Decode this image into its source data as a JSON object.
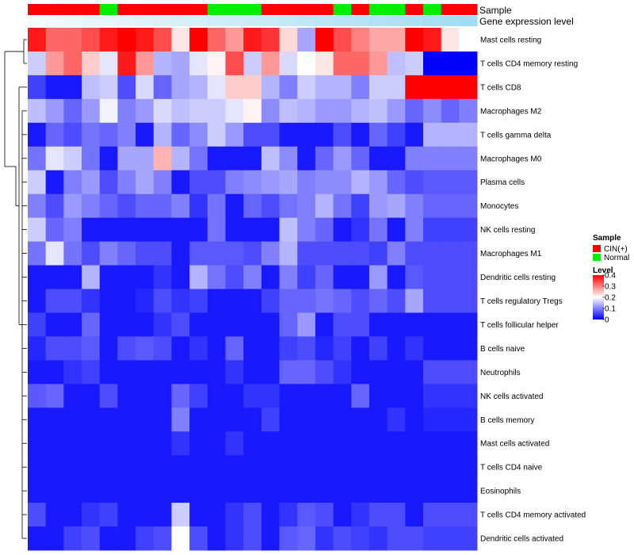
{
  "chart_data": {
    "type": "heatmap",
    "title": "",
    "annotation_tracks": [
      {
        "label": "Sample",
        "key": "sample"
      },
      {
        "label": "Gene expression level",
        "key": "expr"
      }
    ],
    "sample_groups": [
      "CIN(+)",
      "CIN(+)",
      "CIN(+)",
      "CIN(+)",
      "Normal",
      "CIN(+)",
      "CIN(+)",
      "CIN(+)",
      "CIN(+)",
      "CIN(+)",
      "Normal",
      "Normal",
      "Normal",
      "CIN(+)",
      "CIN(+)",
      "CIN(+)",
      "CIN(+)",
      "Normal",
      "CIN(+)",
      "Normal",
      "Normal",
      "CIN(+)",
      "Normal",
      "CIN(+)",
      "CIN(+)"
    ],
    "expression_annotation": [
      0.08,
      0.1,
      0.12,
      0.14,
      0.16,
      0.18,
      0.2,
      0.22,
      0.24,
      0.26,
      0.28,
      0.3,
      0.32,
      0.34,
      0.36,
      0.38,
      0.4,
      0.42,
      0.44,
      0.46,
      0.48,
      0.5,
      0.52,
      0.54,
      0.56
    ],
    "colors": {
      "cin": "#ff0000",
      "normal": "#00ee00",
      "low": "#0000ff",
      "mid": "#ffffff",
      "high": "#ff0000",
      "expr_low": "#ffffff",
      "expr_high": "#56c1ea",
      "dendrogram": "#000000"
    },
    "row_labels": [
      "Mast cells resting",
      "T cells CD4 memory resting",
      "T cells CD8",
      "Macrophages M2",
      "T cells gamma delta",
      "Macrophages M0",
      "Plasma cells",
      "Monocytes",
      "NK cells resting",
      "Macrophages M1",
      "Dendritic cells resting",
      "T cells regulatory  Tregs",
      "T cells follicular helper",
      "B cells naive",
      "Neutrophils",
      "NK cells activated",
      "B cells memory",
      "Mast cells activated",
      "T cells CD4 naive",
      "Eosinophils",
      "T cells CD4 memory activated",
      "Dendritic cells activated"
    ],
    "values": [
      [
        0.38,
        0.32,
        0.32,
        0.34,
        0.38,
        0.4,
        0.38,
        0.34,
        0.22,
        0.4,
        0.32,
        0.28,
        0.38,
        0.36,
        0.23,
        0.13,
        0.4,
        0.34,
        0.3,
        0.27,
        0.27,
        0.4,
        0.38,
        0.22,
        0.2
      ],
      [
        0.16,
        0.28,
        0.32,
        0.24,
        0.18,
        0.38,
        0.28,
        0.14,
        0.13,
        0.18,
        0.21,
        0.34,
        0.16,
        0.28,
        0.17,
        0.2,
        0.22,
        0.32,
        0.32,
        0.28,
        0.15,
        0.16,
        0.0,
        0.0,
        0.0
      ],
      [
        0.05,
        0.02,
        0.02,
        0.15,
        0.16,
        0.06,
        0.17,
        0.08,
        0.13,
        0.14,
        0.18,
        0.24,
        0.24,
        0.14,
        0.1,
        0.16,
        0.14,
        0.14,
        0.1,
        0.16,
        0.16,
        0.4,
        0.4,
        0.4,
        0.4
      ],
      [
        0.15,
        0.12,
        0.08,
        0.12,
        0.19,
        0.1,
        0.12,
        0.17,
        0.15,
        0.16,
        0.16,
        0.18,
        0.21,
        0.11,
        0.15,
        0.14,
        0.12,
        0.12,
        0.14,
        0.15,
        0.12,
        0.08,
        0.11,
        0.08,
        0.1
      ],
      [
        0.02,
        0.08,
        0.06,
        0.09,
        0.08,
        0.1,
        0.02,
        0.14,
        0.08,
        0.11,
        0.16,
        0.12,
        0.06,
        0.06,
        0.02,
        0.02,
        0.02,
        0.06,
        0.02,
        0.08,
        0.05,
        0.02,
        0.14,
        0.14,
        0.14
      ],
      [
        0.09,
        0.18,
        0.16,
        0.09,
        0.02,
        0.13,
        0.13,
        0.26,
        0.14,
        0.09,
        0.02,
        0.02,
        0.02,
        0.15,
        0.11,
        0.02,
        0.08,
        0.12,
        0.08,
        0.02,
        0.02,
        0.1,
        0.1,
        0.1,
        0.1
      ],
      [
        0.16,
        0.02,
        0.1,
        0.12,
        0.06,
        0.1,
        0.13,
        0.1,
        0.02,
        0.06,
        0.06,
        0.1,
        0.11,
        0.12,
        0.13,
        0.1,
        0.11,
        0.11,
        0.14,
        0.12,
        0.08,
        0.06,
        0.07,
        0.07,
        0.07
      ],
      [
        0.1,
        0.06,
        0.12,
        0.1,
        0.08,
        0.06,
        0.08,
        0.08,
        0.1,
        0.04,
        0.09,
        0.02,
        0.08,
        0.06,
        0.09,
        0.1,
        0.14,
        0.09,
        0.05,
        0.12,
        0.13,
        0.1,
        0.08,
        0.08,
        0.08
      ],
      [
        0.16,
        0.08,
        0.1,
        0.02,
        0.02,
        0.02,
        0.02,
        0.02,
        0.02,
        0.02,
        0.09,
        0.02,
        0.02,
        0.02,
        0.15,
        0.1,
        0.08,
        0.02,
        0.04,
        0.09,
        0.02,
        0.1,
        0.05,
        0.05,
        0.05
      ],
      [
        0.09,
        0.18,
        0.09,
        0.06,
        0.1,
        0.08,
        0.06,
        0.06,
        0.02,
        0.07,
        0.07,
        0.07,
        0.06,
        0.1,
        0.14,
        0.06,
        0.06,
        0.06,
        0.06,
        0.05,
        0.1,
        0.06,
        0.06,
        0.06,
        0.06
      ],
      [
        0.02,
        0.02,
        0.02,
        0.14,
        0.02,
        0.02,
        0.02,
        0.04,
        0.02,
        0.14,
        0.09,
        0.06,
        0.1,
        0.02,
        0.1,
        0.05,
        0.08,
        0.02,
        0.02,
        0.12,
        0.02,
        0.07,
        0.06,
        0.06,
        0.06
      ],
      [
        0.02,
        0.06,
        0.06,
        0.04,
        0.02,
        0.02,
        0.03,
        0.06,
        0.04,
        0.05,
        0.02,
        0.02,
        0.02,
        0.05,
        0.08,
        0.08,
        0.09,
        0.08,
        0.06,
        0.08,
        0.06,
        0.13,
        0.06,
        0.06,
        0.06
      ],
      [
        0.05,
        0.02,
        0.02,
        0.08,
        0.02,
        0.02,
        0.02,
        0.04,
        0.06,
        0.02,
        0.02,
        0.02,
        0.02,
        0.02,
        0.08,
        0.12,
        0.02,
        0.06,
        0.06,
        0.02,
        0.02,
        0.02,
        0.02,
        0.02,
        0.02
      ],
      [
        0.03,
        0.06,
        0.06,
        0.07,
        0.02,
        0.06,
        0.07,
        0.06,
        0.02,
        0.04,
        0.02,
        0.08,
        0.02,
        0.02,
        0.05,
        0.06,
        0.03,
        0.05,
        0.02,
        0.05,
        0.02,
        0.04,
        0.02,
        0.02,
        0.02
      ],
      [
        0.02,
        0.02,
        0.04,
        0.05,
        0.02,
        0.02,
        0.02,
        0.02,
        0.02,
        0.02,
        0.02,
        0.04,
        0.02,
        0.02,
        0.08,
        0.08,
        0.06,
        0.04,
        0.02,
        0.02,
        0.02,
        0.02,
        0.06,
        0.06,
        0.06
      ],
      [
        0.07,
        0.08,
        0.02,
        0.02,
        0.06,
        0.02,
        0.02,
        0.02,
        0.08,
        0.05,
        0.02,
        0.02,
        0.04,
        0.04,
        0.02,
        0.02,
        0.02,
        0.02,
        0.08,
        0.02,
        0.02,
        0.02,
        0.04,
        0.04,
        0.04
      ],
      [
        0.02,
        0.02,
        0.02,
        0.02,
        0.02,
        0.02,
        0.02,
        0.02,
        0.1,
        0.02,
        0.02,
        0.02,
        0.02,
        0.05,
        0.02,
        0.02,
        0.02,
        0.02,
        0.02,
        0.02,
        0.04,
        0.02,
        0.03,
        0.03,
        0.03
      ],
      [
        0.02,
        0.02,
        0.02,
        0.02,
        0.02,
        0.02,
        0.02,
        0.02,
        0.04,
        0.02,
        0.02,
        0.04,
        0.02,
        0.02,
        0.02,
        0.02,
        0.02,
        0.02,
        0.02,
        0.02,
        0.02,
        0.02,
        0.02,
        0.02,
        0.02
      ],
      [
        0.02,
        0.02,
        0.02,
        0.02,
        0.02,
        0.02,
        0.02,
        0.02,
        0.02,
        0.02,
        0.02,
        0.02,
        0.02,
        0.02,
        0.02,
        0.02,
        0.02,
        0.02,
        0.02,
        0.02,
        0.02,
        0.02,
        0.02,
        0.02,
        0.02
      ],
      [
        0.02,
        0.02,
        0.02,
        0.02,
        0.02,
        0.02,
        0.02,
        0.02,
        0.02,
        0.02,
        0.02,
        0.02,
        0.02,
        0.02,
        0.02,
        0.02,
        0.02,
        0.02,
        0.02,
        0.02,
        0.02,
        0.02,
        0.02,
        0.02,
        0.02
      ],
      [
        0.06,
        0.02,
        0.02,
        0.04,
        0.05,
        0.02,
        0.02,
        0.02,
        0.16,
        0.02,
        0.02,
        0.04,
        0.06,
        0.02,
        0.04,
        0.07,
        0.06,
        0.02,
        0.04,
        0.06,
        0.06,
        0.02,
        0.06,
        0.06,
        0.06
      ],
      [
        0.02,
        0.02,
        0.05,
        0.06,
        0.02,
        0.02,
        0.05,
        0.06,
        0.2,
        0.06,
        0.02,
        0.04,
        0.06,
        0.02,
        0.07,
        0.08,
        0.04,
        0.06,
        0.05,
        0.04,
        0.06,
        0.06,
        0.05,
        0.05,
        0.05
      ]
    ],
    "legend": {
      "sample_title": "Sample",
      "sample_items": [
        "CIN(+)",
        "Normal"
      ],
      "level_title": "Level",
      "level_ticks": [
        0.4,
        0.3,
        0.2,
        0.1,
        0
      ],
      "level_tick_labels": [
        "0.4",
        "0.3",
        "0.2",
        "0.1",
        "0"
      ],
      "range": [
        0,
        0.4
      ]
    }
  }
}
